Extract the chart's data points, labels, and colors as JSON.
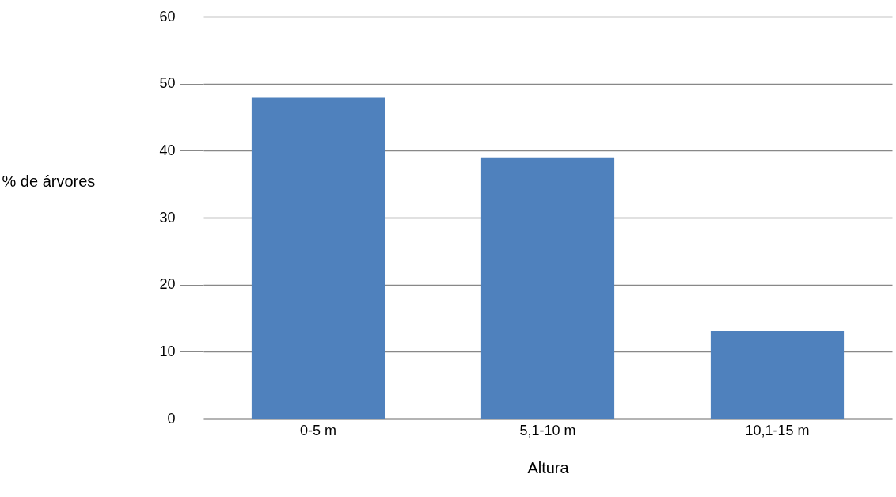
{
  "chart_data": {
    "type": "bar",
    "xlabel": "Altura",
    "ylabel": "% de árvores",
    "categories": [
      "0-5 m",
      "5,1-10 m",
      "10,1-15 m"
    ],
    "values": [
      47.9,
      38.9,
      13.1
    ],
    "color": "#4f81bd",
    "ylim": [
      0,
      60
    ],
    "yticks": [
      0,
      10,
      20,
      30,
      40,
      50,
      60
    ],
    "grid": "y"
  }
}
